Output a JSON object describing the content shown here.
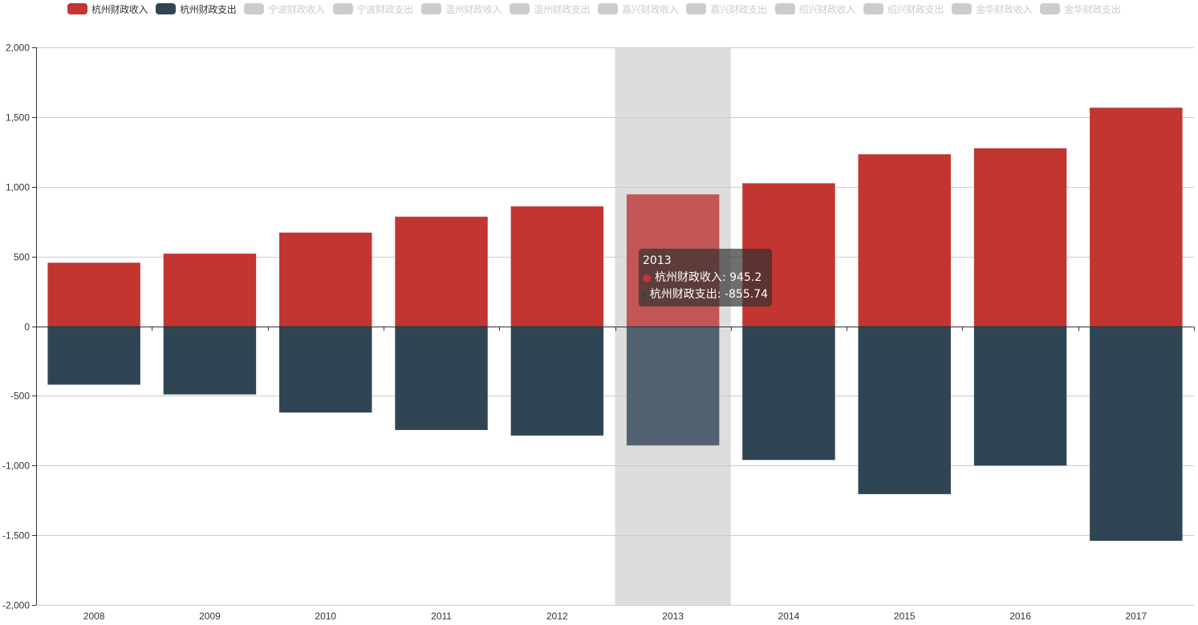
{
  "legend": [
    {
      "name": "杭州财政收入",
      "color": "#c23531",
      "active": true
    },
    {
      "name": "杭州财政支出",
      "color": "#2f4554",
      "active": true
    },
    {
      "name": "宁波财政收入",
      "color": "#cccccc",
      "active": false
    },
    {
      "name": "宁波财政支出",
      "color": "#cccccc",
      "active": false
    },
    {
      "name": "温州财政收入",
      "color": "#cccccc",
      "active": false
    },
    {
      "name": "温州财政支出",
      "color": "#cccccc",
      "active": false
    },
    {
      "name": "嘉兴财政收入",
      "color": "#cccccc",
      "active": false
    },
    {
      "name": "嘉兴财政支出",
      "color": "#cccccc",
      "active": false
    },
    {
      "name": "绍兴财政收入",
      "color": "#cccccc",
      "active": false
    },
    {
      "name": "绍兴财政支出",
      "color": "#cccccc",
      "active": false
    },
    {
      "name": "金华财政收入",
      "color": "#cccccc",
      "active": false
    },
    {
      "name": "金华财政支出",
      "color": "#cccccc",
      "active": false
    }
  ],
  "tooltip": {
    "title": "2013",
    "rows": [
      {
        "text": "杭州财政收入: 945.2",
        "color": "#c23531"
      },
      {
        "text": "杭州财政支出: -855.74",
        "color": "#2f4554"
      }
    ]
  },
  "chart_data": {
    "type": "bar",
    "categories": [
      "2008",
      "2009",
      "2010",
      "2011",
      "2012",
      "2013",
      "2014",
      "2015",
      "2016",
      "2017"
    ],
    "series": [
      {
        "name": "杭州财政收入",
        "color": "#c23531",
        "values": [
          455,
          520,
          671,
          785,
          859,
          945.2,
          1025,
          1233,
          1276,
          1567
        ]
      },
      {
        "name": "杭州财政支出",
        "color": "#2f4554",
        "values": [
          -420,
          -490,
          -620,
          -745,
          -785,
          -855.74,
          -960,
          -1205,
          -1000,
          -1540
        ]
      }
    ],
    "stacked": true,
    "ylim": [
      -2000,
      2000
    ],
    "yticks": [
      -2000,
      -1500,
      -1000,
      -500,
      0,
      500,
      1000,
      1500,
      2000
    ],
    "ytick_labels": [
      "-2,000",
      "-1,500",
      "-1,000",
      "-500",
      "0",
      "500",
      "1,000",
      "1,500",
      "2,000"
    ],
    "highlighted_category": "2013",
    "grid": true,
    "legend_position": "top-left",
    "title": "",
    "xlabel": "",
    "ylabel": ""
  }
}
